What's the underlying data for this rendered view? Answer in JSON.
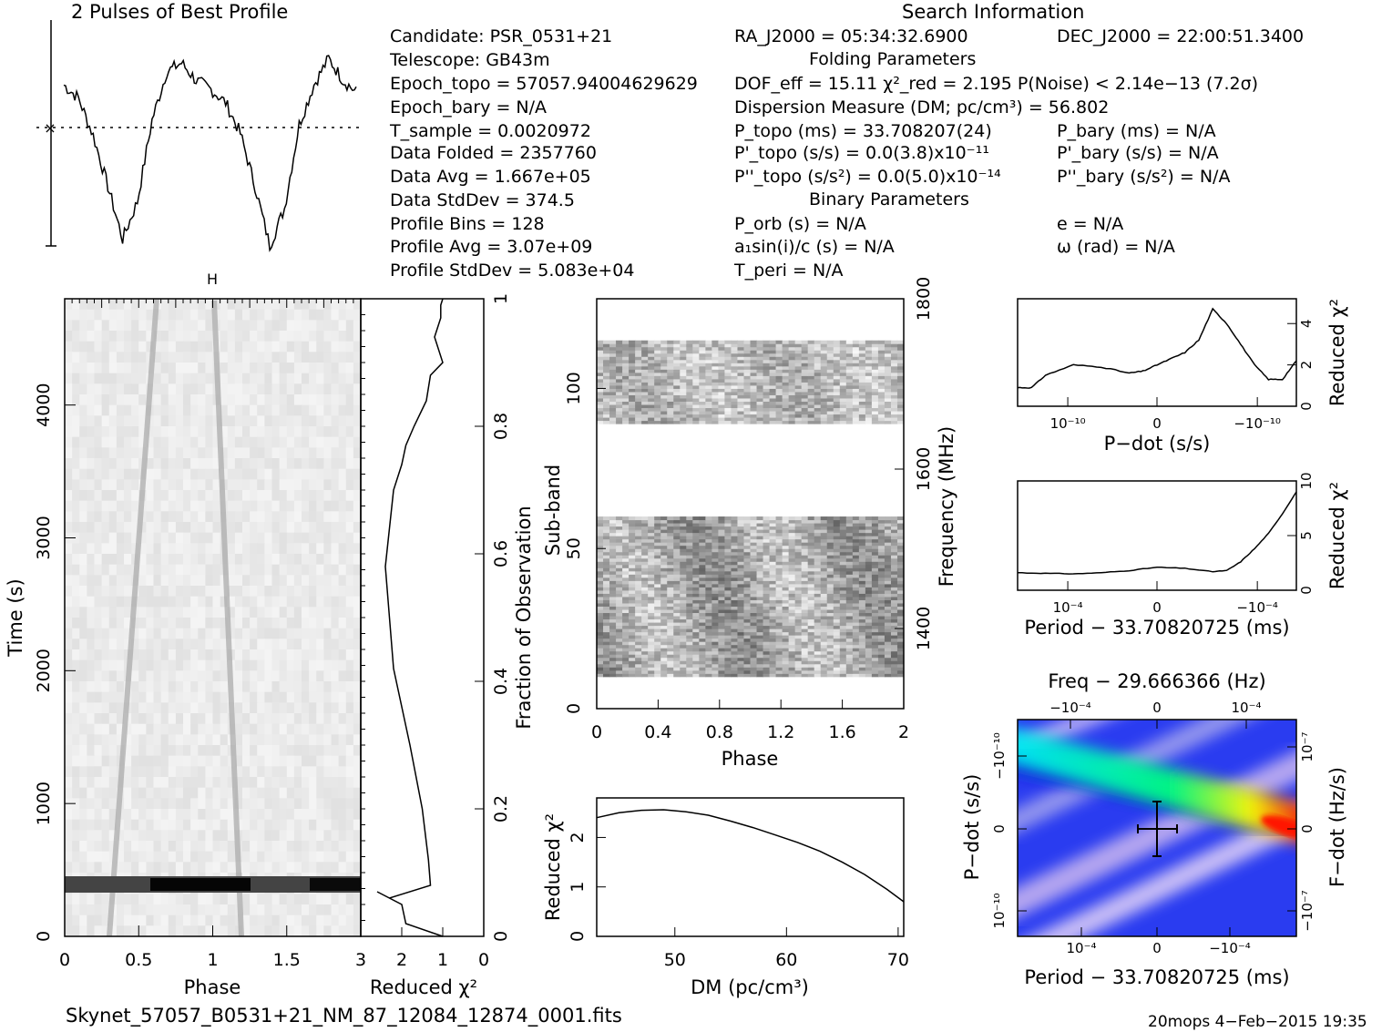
{
  "header": {
    "profile_title": "2 Pulses of Best Profile",
    "search_title": "Search Information",
    "folding_title": "Folding Parameters",
    "binary_title": "Binary Parameters"
  },
  "info_left": [
    "Candidate:  PSR_0531+21",
    "Telescope:  GB43m",
    "Epoch_topo = 57057.94004629629",
    "Epoch_bary = N/A",
    "T_sample        =  0.0020972",
    "Data Folded     =  2357760",
    "Data Avg        =  1.667e+05",
    "Data StdDev     =  374.5",
    "Profile Bins    =  128",
    "Profile Avg     =  3.07e+09",
    "Profile StdDev  =  5.083e+04"
  ],
  "info_mid": {
    "ra": "RA_J2000 = 05:34:32.6900",
    "dec": "DEC_J2000 = 22:00:51.3400",
    "dof": "DOF_eff = 15.11  χ²_red = 2.195  P(Noise) < 2.14e−13  (7.2σ)",
    "dm": "Dispersion Measure (DM; pc/cm³) = 56.802",
    "ptopo": "P_topo (ms) =  33.708207(24)",
    "pbary": "P_bary (ms) = N/A",
    "pdtopo": "P'_topo (s/s) = 0.0(3.8)x10⁻¹¹",
    "pdbary": "P'_bary (s/s) = N/A",
    "pddtopo": "P''_topo (s/s²) = 0.0(5.0)x10⁻¹⁴",
    "pddbary": "P''_bary (s/s²) = N/A",
    "porb": "P_orb (s) = N/A",
    "e": "e = N/A",
    "a1": "a₁sin(i)/c (s) = N/A",
    "omega": "ω (rad) = N/A",
    "tperi": "T_peri = N/A"
  },
  "footer": {
    "filename": "Skynet_57057_B0531+21_NM_87_12084_12874_0001.fits",
    "stamp": "20mops  4−Feb−2015 19:35"
  },
  "colors": {
    "axis": "#000000",
    "cross": "#000000"
  },
  "chart_data": [
    {
      "name": "profile",
      "type": "line",
      "title": "2 Pulses of Best Profile",
      "x": [
        0.0,
        0.1,
        0.2,
        0.3,
        0.4,
        0.5,
        0.6,
        0.7,
        0.8,
        0.9,
        1.0,
        1.1,
        1.2,
        1.3,
        1.4,
        1.5,
        1.6,
        1.7,
        1.8,
        1.9,
        2.0
      ],
      "y": [
        0.78,
        0.72,
        0.55,
        0.32,
        0.08,
        0.25,
        0.62,
        0.84,
        0.88,
        0.8,
        0.76,
        0.7,
        0.56,
        0.32,
        0.05,
        0.22,
        0.6,
        0.78,
        0.9,
        0.8,
        0.74
      ],
      "xlim": [
        0,
        2
      ]
    },
    {
      "name": "time-phase",
      "type": "heatmap",
      "xlabel": "Phase",
      "ylabel": "Time (s)",
      "xticks": [
        "0",
        "0.5",
        "1",
        "1.5"
      ],
      "yticks": [
        "0",
        "1000",
        "2000",
        "3000",
        "4000"
      ],
      "xlim": [
        0,
        2
      ],
      "ylim": [
        0,
        4800
      ]
    },
    {
      "name": "time-chi2",
      "type": "line",
      "xlabel": "Reduced χ²",
      "ylabel": "Fraction of Observation",
      "xticks": [
        "3",
        "2",
        "1",
        "0"
      ],
      "yticks": [
        "0",
        "0.2",
        "0.4",
        "0.6",
        "0.8",
        "1"
      ],
      "xlim": [
        3,
        0
      ],
      "ylim": [
        0,
        1
      ],
      "x": [
        1.0,
        1.9,
        2.0,
        2.6,
        2.3,
        1.3,
        1.35,
        1.5,
        1.8,
        2.2,
        2.3,
        2.4,
        2.3,
        2.2,
        2.0,
        1.9,
        1.7,
        1.4,
        1.3,
        1.0,
        1.2,
        1.05,
        1.05,
        1.0
      ],
      "y": [
        0.0,
        0.02,
        0.05,
        0.07,
        0.06,
        0.08,
        0.12,
        0.2,
        0.3,
        0.42,
        0.5,
        0.58,
        0.64,
        0.7,
        0.74,
        0.77,
        0.8,
        0.84,
        0.88,
        0.9,
        0.94,
        0.97,
        0.99,
        1.0
      ]
    },
    {
      "name": "subband-phase",
      "type": "heatmap",
      "xlabel": "Phase",
      "ylabel": "Sub-band",
      "y2label": "Frequency (MHz)",
      "xticks": [
        "0",
        "0.4",
        "0.8",
        "1.2",
        "1.6",
        "2"
      ],
      "yticks": [
        "0",
        "50",
        "100"
      ],
      "y2ticks": [
        "1400",
        "1600",
        "1800"
      ],
      "xlim": [
        0,
        2
      ],
      "ylim": [
        0,
        128
      ]
    },
    {
      "name": "dm-chi2",
      "type": "line",
      "xlabel": "DM (pc/cm³)",
      "ylabel": "Reduced χ²",
      "xticks": [
        "50",
        "60",
        "70"
      ],
      "yticks": [
        "0",
        "1",
        "2"
      ],
      "xlim": [
        43,
        70.5
      ],
      "ylim": [
        0,
        2.8
      ],
      "x": [
        43,
        45,
        47,
        49,
        51,
        53,
        55,
        57,
        59,
        61,
        63,
        65,
        67,
        69,
        70.5
      ],
      "y": [
        2.4,
        2.5,
        2.55,
        2.56,
        2.52,
        2.45,
        2.33,
        2.2,
        2.05,
        1.9,
        1.72,
        1.5,
        1.25,
        0.95,
        0.7
      ]
    },
    {
      "name": "pdot-chi2",
      "type": "line",
      "xlabel": "P−dot (s/s)",
      "ylabel": "Reduced χ²",
      "xticks": [
        "10⁻¹⁰",
        "0",
        "−10⁻¹⁰"
      ],
      "yticks": [
        "0",
        "2",
        "4"
      ],
      "ylim": [
        0,
        5.2
      ],
      "x": [
        0,
        0.05,
        0.1,
        0.2,
        0.3,
        0.4,
        0.45,
        0.5,
        0.55,
        0.6,
        0.65,
        0.7,
        0.75,
        0.8,
        0.85,
        0.9,
        0.95,
        1.0
      ],
      "y": [
        0.9,
        0.9,
        1.5,
        2.0,
        1.9,
        1.6,
        1.7,
        2.0,
        2.3,
        2.6,
        3.2,
        4.7,
        4.0,
        3.0,
        2.0,
        1.3,
        1.3,
        2.2
      ]
    },
    {
      "name": "period-chi2",
      "type": "line",
      "xlabel": "Period − 33.70820725 (ms)",
      "ylabel": "Reduced χ²",
      "xticks": [
        "10⁻⁴",
        "0",
        "−10⁻⁴"
      ],
      "yticks": [
        "0",
        "5",
        "10"
      ],
      "ylim": [
        0,
        10
      ],
      "x": [
        0,
        0.1,
        0.2,
        0.3,
        0.4,
        0.5,
        0.6,
        0.7,
        0.75,
        0.8,
        0.85,
        0.9,
        0.95,
        1.0
      ],
      "y": [
        1.6,
        1.55,
        1.5,
        1.6,
        1.8,
        2.1,
        2.0,
        1.7,
        1.8,
        2.6,
        3.8,
        5.2,
        7.0,
        9.0
      ]
    },
    {
      "name": "period-pdot",
      "type": "heatmap",
      "xlabel": "Period − 33.70820725 (ms)",
      "ylabel": "P−dot (s/s)",
      "x2label": "Freq − 29.666366 (Hz)",
      "y2label": "F−dot (Hz/s)",
      "xticks": [
        "10⁻⁴",
        "0",
        "−10⁻⁴"
      ],
      "yticks": [
        "10⁻¹⁰",
        "0",
        "−10⁻¹⁰"
      ],
      "x2ticks": [
        "−10⁻⁴",
        "0",
        "10⁻⁴"
      ],
      "y2ticks": [
        "−10⁻⁷",
        "0",
        "10⁻⁷"
      ]
    }
  ]
}
